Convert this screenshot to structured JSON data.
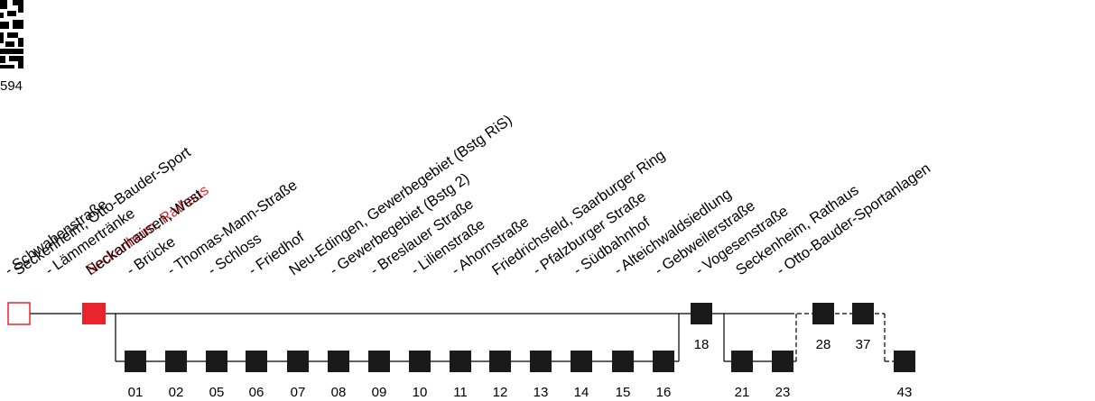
{
  "qr_code": {
    "number": "594"
  },
  "origin_stop": {
    "name": "Seckenheim, Otto-Bauder-Sport"
  },
  "current_stop": {
    "name": "Seckenheim, Rathaus"
  },
  "stops": [
    {
      "name": "- Schwabenstraße",
      "time": "01"
    },
    {
      "name": "- Lämmertränke",
      "time": "02"
    },
    {
      "name": "Neckarhausen, West",
      "time": "05"
    },
    {
      "name": "- Brücke",
      "time": "06"
    },
    {
      "name": "- Thomas-Mann-Straße",
      "time": "07"
    },
    {
      "name": "- Schloss",
      "time": "08"
    },
    {
      "name": "- Friedhof",
      "time": "09"
    },
    {
      "name": "Neu-Edingen, Gewerbegebiet (Bstg RiS)",
      "time": "10"
    },
    {
      "name": "- Gewerbegebiet (Bstg 2)",
      "time": "11"
    },
    {
      "name": "- Breslauer Straße",
      "time": "12"
    },
    {
      "name": "- Lilienstraße",
      "time": "13"
    },
    {
      "name": "- Ahornstraße",
      "time": "14"
    },
    {
      "name": "Friedrichsfeld, Saarburger Ring",
      "time": "15"
    },
    {
      "name": "- Pfalzburger Straße",
      "time": "16"
    },
    {
      "name": "- Südbahnhof",
      "time": "18"
    },
    {
      "name": "- Alteichwaldsiedlung",
      "time": "21"
    },
    {
      "name": "- Gebweilerstraße",
      "time": "23"
    },
    {
      "name": "- Vogesenstraße",
      "time": "28"
    },
    {
      "name": "Seckenheim, Rathaus",
      "time": "37"
    },
    {
      "name": "- Otto-Bauder-Sportanlagen",
      "time": "43"
    }
  ],
  "colors": {
    "highlight": "#e8242c",
    "stop": "#1a1a1a",
    "line": "#000000"
  }
}
